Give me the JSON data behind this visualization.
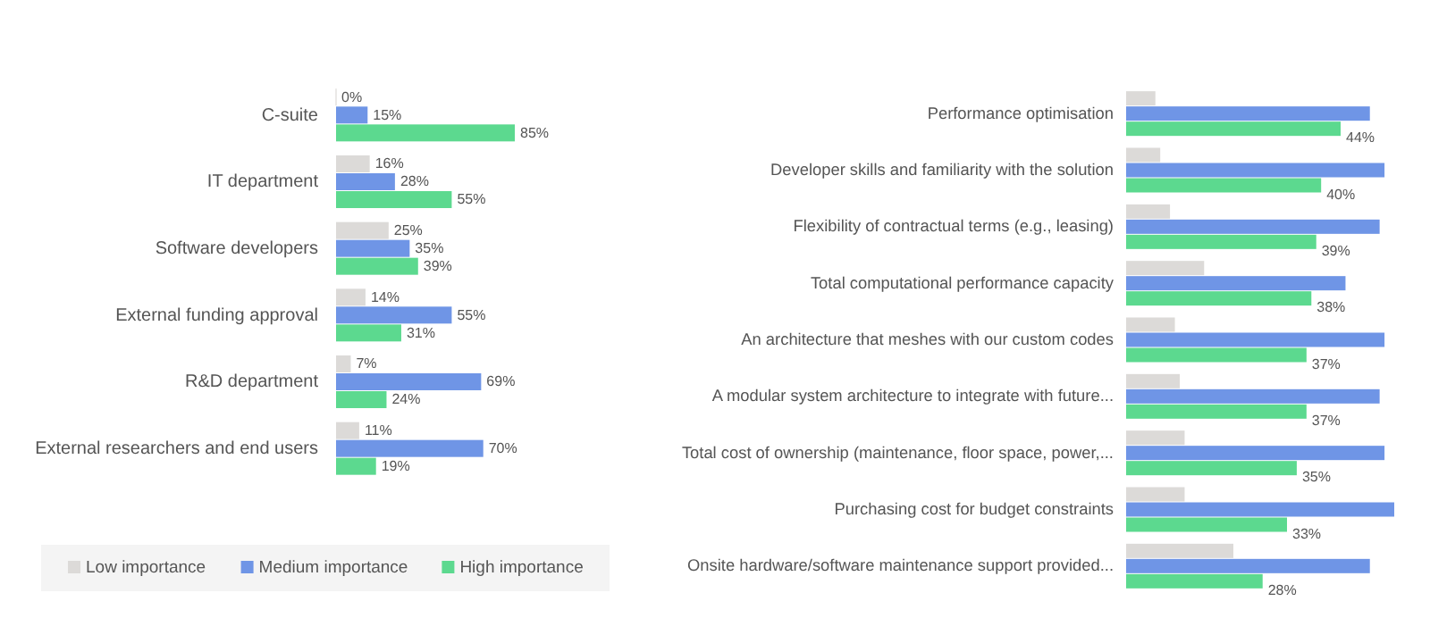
{
  "chart_data": [
    {
      "type": "bar",
      "orientation": "horizontal",
      "categories": [
        "C-suite",
        "IT department",
        "Software developers",
        "External funding approval",
        "R&D department",
        "External researchers and end users"
      ],
      "series": [
        {
          "name": "Low importance",
          "color": "#dcdad8",
          "values": [
            0,
            16,
            25,
            14,
            7,
            11
          ],
          "value_labels": [
            "0%",
            "16%",
            "25%",
            "14%",
            "7%",
            "11%"
          ]
        },
        {
          "name": "Medium importance",
          "color": "#6f95e6",
          "values": [
            15,
            28,
            35,
            55,
            69,
            70
          ],
          "value_labels": [
            "15%",
            "28%",
            "35%",
            "55%",
            "69%",
            "70%"
          ]
        },
        {
          "name": "High importance",
          "color": "#5cd98f",
          "values": [
            85,
            55,
            39,
            31,
            24,
            19
          ],
          "value_labels": [
            "85%",
            "55%",
            "39%",
            "31%",
            "24%",
            "19%"
          ]
        }
      ],
      "legend": "bottom"
    },
    {
      "type": "bar",
      "orientation": "horizontal",
      "categories": [
        "Performance optimisation",
        "Developer skills and familiarity with the solution",
        "Flexibility of contractual terms (e.g., leasing)",
        "Total computational performance capacity",
        "An architecture that meshes with our custom codes",
        "A modular system architecture to integrate with future...",
        "Total cost of ownership (maintenance, floor space, power,...",
        "Purchasing cost for budget constraints",
        "Onsite hardware/software maintenance support provided..."
      ],
      "series": [
        {
          "color": "#dcdad8",
          "values": [
            6,
            7,
            9,
            16,
            10,
            11,
            12,
            12,
            22
          ]
        },
        {
          "color": "#6f95e6",
          "values": [
            50,
            53,
            52,
            45,
            53,
            52,
            53,
            55,
            50
          ]
        },
        {
          "color": "#5cd98f",
          "values": [
            44,
            40,
            39,
            38,
            37,
            37,
            35,
            33,
            28
          ],
          "value_labels": [
            "44%",
            "40%",
            "39%",
            "38%",
            "37%",
            "37%",
            "35%",
            "33%",
            "28%"
          ]
        }
      ],
      "legend": false
    }
  ]
}
